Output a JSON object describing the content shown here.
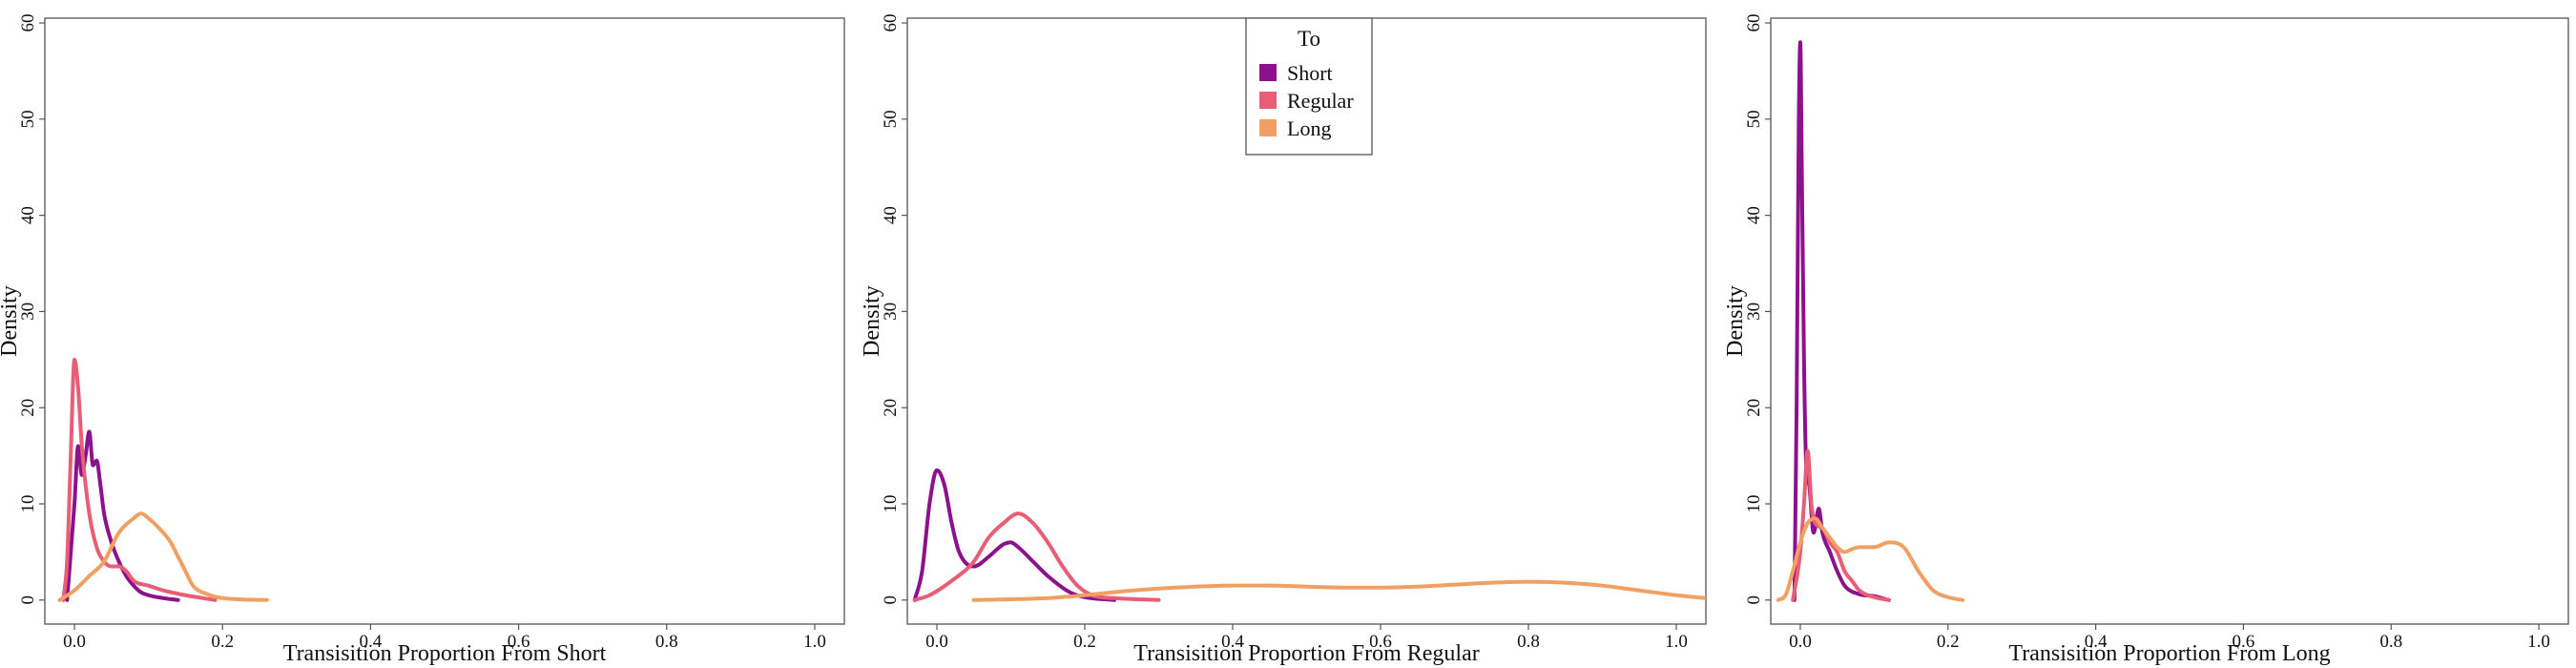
{
  "chart_data": [
    {
      "type": "line",
      "title": "",
      "xlabel": "Transisition Proportion From Short",
      "ylabel": "Density",
      "xlim": [
        -0.04,
        1.04
      ],
      "ylim": [
        -2.5,
        60.5
      ],
      "xticks": [
        "0.0",
        "0.2",
        "0.4",
        "0.6",
        "0.8",
        "1.0"
      ],
      "yticks": [
        "0",
        "10",
        "20",
        "30",
        "40",
        "50",
        "60"
      ],
      "series": [
        {
          "name": "Short",
          "x": [
            -0.01,
            0.0,
            0.005,
            0.01,
            0.015,
            0.02,
            0.025,
            0.03,
            0.035,
            0.04,
            0.05,
            0.06,
            0.07,
            0.08,
            0.09,
            0.1,
            0.12,
            0.14
          ],
          "y": [
            0,
            10,
            16,
            13,
            15,
            17.5,
            14,
            14.5,
            12,
            9,
            6,
            4,
            2.5,
            1.5,
            0.8,
            0.5,
            0.2,
            0
          ]
        },
        {
          "name": "Regular",
          "x": [
            -0.015,
            -0.01,
            -0.005,
            0.0,
            0.005,
            0.01,
            0.02,
            0.03,
            0.04,
            0.05,
            0.06,
            0.07,
            0.08,
            0.1,
            0.12,
            0.15,
            0.19
          ],
          "y": [
            0,
            4,
            15,
            25,
            22,
            16,
            9,
            5.5,
            4,
            3.5,
            3.5,
            3,
            2,
            1.5,
            1,
            0.5,
            0
          ]
        },
        {
          "name": "Long",
          "x": [
            -0.02,
            0.0,
            0.02,
            0.04,
            0.06,
            0.08,
            0.09,
            0.1,
            0.12,
            0.13,
            0.14,
            0.15,
            0.16,
            0.18,
            0.2,
            0.26
          ],
          "y": [
            0,
            1,
            2.5,
            4,
            7,
            8.5,
            9,
            8.5,
            7,
            6,
            4.5,
            3,
            1.5,
            0.6,
            0.2,
            0
          ]
        }
      ]
    },
    {
      "type": "line",
      "title": "",
      "xlabel": "Transisition Proportion From Regular",
      "ylabel": "Density",
      "xlim": [
        -0.04,
        1.04
      ],
      "ylim": [
        -2.5,
        60.5
      ],
      "xticks": [
        "0.0",
        "0.2",
        "0.4",
        "0.6",
        "0.8",
        "1.0"
      ],
      "yticks": [
        "0",
        "10",
        "20",
        "30",
        "40",
        "50",
        "60"
      ],
      "legend": {
        "title": "To",
        "entries": [
          "Short",
          "Regular",
          "Long"
        ],
        "placement": "top-center"
      },
      "series": [
        {
          "name": "Short",
          "x": [
            -0.03,
            -0.02,
            -0.01,
            0.0,
            0.01,
            0.02,
            0.03,
            0.05,
            0.07,
            0.09,
            0.1,
            0.11,
            0.13,
            0.15,
            0.18,
            0.2,
            0.24
          ],
          "y": [
            0,
            3,
            10,
            13.5,
            12,
            8,
            5,
            3.5,
            4.5,
            5.8,
            6,
            5.5,
            4,
            2.5,
            0.8,
            0.3,
            0
          ]
        },
        {
          "name": "Regular",
          "x": [
            -0.03,
            -0.01,
            0.02,
            0.05,
            0.07,
            0.09,
            0.11,
            0.13,
            0.15,
            0.17,
            0.19,
            0.21,
            0.24,
            0.3
          ],
          "y": [
            0,
            0.5,
            2,
            4,
            6.5,
            8,
            9,
            8,
            6,
            3.5,
            1.5,
            0.5,
            0.2,
            0
          ]
        },
        {
          "name": "Long",
          "x": [
            0.05,
            0.15,
            0.2,
            0.25,
            0.3,
            0.35,
            0.4,
            0.45,
            0.5,
            0.55,
            0.6,
            0.65,
            0.7,
            0.75,
            0.8,
            0.85,
            0.9,
            0.95,
            1.0,
            1.04
          ],
          "y": [
            0,
            0.2,
            0.5,
            0.9,
            1.2,
            1.4,
            1.5,
            1.5,
            1.4,
            1.3,
            1.3,
            1.4,
            1.6,
            1.8,
            1.9,
            1.8,
            1.5,
            1.0,
            0.5,
            0.2
          ]
        }
      ]
    },
    {
      "type": "line",
      "title": "",
      "xlabel": "Transisition Proportion From Long",
      "ylabel": "Density",
      "xlim": [
        -0.04,
        1.04
      ],
      "ylim": [
        -2.5,
        60.5
      ],
      "xticks": [
        "0.0",
        "0.2",
        "0.4",
        "0.6",
        "0.8",
        "1.0"
      ],
      "yticks": [
        "0",
        "10",
        "20",
        "30",
        "40",
        "50",
        "60"
      ],
      "series": [
        {
          "name": "Short",
          "x": [
            -0.008,
            -0.005,
            -0.002,
            0.0,
            0.002,
            0.005,
            0.008,
            0.012,
            0.018,
            0.025,
            0.03,
            0.04,
            0.05,
            0.06,
            0.08,
            0.1,
            0.12
          ],
          "y": [
            0,
            20,
            50,
            58,
            45,
            25,
            14,
            12,
            7,
            9.5,
            7,
            5,
            3,
            1.5,
            0.6,
            0.4,
            0
          ]
        },
        {
          "name": "Regular",
          "x": [
            -0.01,
            0.0,
            0.005,
            0.01,
            0.015,
            0.02,
            0.03,
            0.04,
            0.05,
            0.06,
            0.07,
            0.08,
            0.1,
            0.12
          ],
          "y": [
            0,
            5,
            10,
            15.5,
            10,
            8,
            7.5,
            6,
            5,
            3,
            2,
            1,
            0.3,
            0
          ]
        },
        {
          "name": "Long",
          "x": [
            -0.03,
            -0.02,
            -0.01,
            0.0,
            0.01,
            0.02,
            0.03,
            0.04,
            0.05,
            0.06,
            0.07,
            0.08,
            0.1,
            0.12,
            0.14,
            0.16,
            0.18,
            0.2,
            0.22
          ],
          "y": [
            0,
            0.5,
            3,
            6,
            8,
            8.5,
            7.5,
            6.5,
            5.5,
            5,
            5.3,
            5.5,
            5.5,
            6,
            5.5,
            3,
            1,
            0.3,
            0
          ]
        }
      ]
    }
  ],
  "colors": {
    "Short": "#8b128c",
    "Regular": "#e85e76",
    "Long": "#f0a062"
  }
}
